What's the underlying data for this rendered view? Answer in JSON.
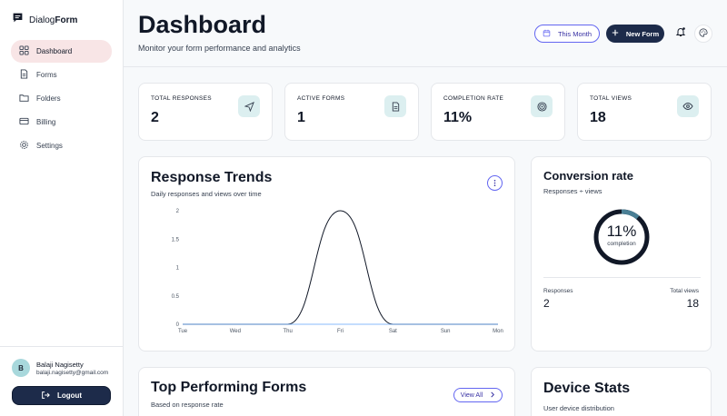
{
  "brand": {
    "prefix": "Dialog",
    "suffix": "Form"
  },
  "sidebar": {
    "items": [
      {
        "label": "Dashboard",
        "icon": "grid-icon",
        "active": true
      },
      {
        "label": "Forms",
        "icon": "document-icon"
      },
      {
        "label": "Folders",
        "icon": "folder-icon"
      },
      {
        "label": "Billing",
        "icon": "credit-card-icon"
      },
      {
        "label": "Settings",
        "icon": "gear-icon"
      }
    ]
  },
  "user": {
    "initial": "B",
    "name": "Balaji Nagisetty",
    "email": "balaji.nagisetty@gmail.com",
    "logout_label": "Logout"
  },
  "header": {
    "title": "Dashboard",
    "subtitle": "Monitor your form performance and analytics",
    "period_label": "This Month",
    "new_form_label": "New Form"
  },
  "stats": [
    {
      "label": "TOTAL RESPONSES",
      "value": "2",
      "icon": "send-icon"
    },
    {
      "label": "ACTIVE FORMS",
      "value": "1",
      "icon": "document-icon"
    },
    {
      "label": "COMPLETION RATE",
      "value": "11%",
      "icon": "target-icon"
    },
    {
      "label": "TOTAL VIEWS",
      "value": "18",
      "icon": "eye-icon"
    }
  ],
  "trends": {
    "title": "Response Trends",
    "subtitle": "Daily responses and views over time"
  },
  "chart_data": {
    "type": "line",
    "categories": [
      "Tue",
      "Wed",
      "Thu",
      "Fri",
      "Sat",
      "Sun",
      "Mon"
    ],
    "series": [
      {
        "values": [
          0,
          0,
          0,
          2,
          0,
          0,
          0
        ],
        "color": "#111827"
      },
      {
        "values": [
          0,
          0,
          0,
          0,
          0,
          0,
          0
        ],
        "color": "#60a5fa"
      }
    ],
    "yticks": [
      "0",
      "0.5",
      "1",
      "1.5",
      "2"
    ],
    "ylim": [
      0,
      2
    ],
    "grid": false
  },
  "conversion": {
    "title": "Conversion rate",
    "subtitle": "Responses ÷ views",
    "rate": "11%",
    "rate_fraction": 0.11,
    "rate_label": "completion",
    "responses_label": "Responses",
    "responses_value": "2",
    "views_label": "Total views",
    "views_value": "18",
    "accent": "#4a7f95"
  },
  "top_forms": {
    "title": "Top Performing Forms",
    "subtitle": "Based on response rate",
    "view_all_label": "View All"
  },
  "device_stats": {
    "title": "Device Stats",
    "subtitle": "User device distribution"
  }
}
